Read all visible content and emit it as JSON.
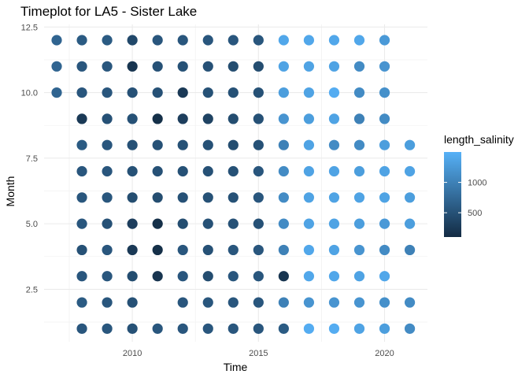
{
  "chart_data": {
    "type": "scatter",
    "title": "Timeplot for LA5 - Sister Lake",
    "xlabel": "Time",
    "ylabel": "Month",
    "x_ticks": [
      2010,
      2015,
      2020
    ],
    "y_ticks": [
      "2.5",
      "5.0",
      "7.5",
      "10.0",
      "12.5"
    ],
    "xlim": [
      2006.5,
      2021.7
    ],
    "ylim": [
      0.5,
      12.6
    ],
    "grid": true,
    "legend": {
      "title": "length_salinity",
      "ticks": [
        {
          "label": "1000",
          "value": 1000
        },
        {
          "label": "500",
          "value": 500
        }
      ],
      "range": [
        100,
        1500
      ],
      "low_color": "#132b43",
      "high_color": "#56b1f7",
      "placement": "right"
    },
    "points": [
      {
        "x": 2007,
        "y": 12,
        "v": 700
      },
      {
        "x": 2007,
        "y": 11,
        "v": 700
      },
      {
        "x": 2007,
        "y": 10,
        "v": 700
      },
      {
        "x": 2008,
        "y": 12,
        "v": 600
      },
      {
        "x": 2008,
        "y": 11,
        "v": 550
      },
      {
        "x": 2008,
        "y": 10,
        "v": 550
      },
      {
        "x": 2008,
        "y": 9,
        "v": 250
      },
      {
        "x": 2008,
        "y": 8,
        "v": 600
      },
      {
        "x": 2008,
        "y": 7,
        "v": 550
      },
      {
        "x": 2008,
        "y": 6,
        "v": 550
      },
      {
        "x": 2008,
        "y": 5,
        "v": 550
      },
      {
        "x": 2008,
        "y": 4,
        "v": 500
      },
      {
        "x": 2008,
        "y": 3,
        "v": 550
      },
      {
        "x": 2008,
        "y": 2,
        "v": 600
      },
      {
        "x": 2008,
        "y": 1,
        "v": 550
      },
      {
        "x": 2009,
        "y": 12,
        "v": 600
      },
      {
        "x": 2009,
        "y": 11,
        "v": 550
      },
      {
        "x": 2009,
        "y": 10,
        "v": 550
      },
      {
        "x": 2009,
        "y": 9,
        "v": 500
      },
      {
        "x": 2009,
        "y": 8,
        "v": 550
      },
      {
        "x": 2009,
        "y": 7,
        "v": 550
      },
      {
        "x": 2009,
        "y": 6,
        "v": 550
      },
      {
        "x": 2009,
        "y": 5,
        "v": 500
      },
      {
        "x": 2009,
        "y": 4,
        "v": 550
      },
      {
        "x": 2009,
        "y": 3,
        "v": 550
      },
      {
        "x": 2009,
        "y": 2,
        "v": 550
      },
      {
        "x": 2009,
        "y": 1,
        "v": 550
      },
      {
        "x": 2010,
        "y": 12,
        "v": 400
      },
      {
        "x": 2010,
        "y": 11,
        "v": 200
      },
      {
        "x": 2010,
        "y": 10,
        "v": 500
      },
      {
        "x": 2010,
        "y": 9,
        "v": 500
      },
      {
        "x": 2010,
        "y": 8,
        "v": 500
      },
      {
        "x": 2010,
        "y": 7,
        "v": 500
      },
      {
        "x": 2010,
        "y": 6,
        "v": 450
      },
      {
        "x": 2010,
        "y": 5,
        "v": 300
      },
      {
        "x": 2010,
        "y": 4,
        "v": 250
      },
      {
        "x": 2010,
        "y": 3,
        "v": 450
      },
      {
        "x": 2010,
        "y": 2,
        "v": 500
      },
      {
        "x": 2010,
        "y": 1,
        "v": 500
      },
      {
        "x": 2011,
        "y": 12,
        "v": 550
      },
      {
        "x": 2011,
        "y": 11,
        "v": 500
      },
      {
        "x": 2011,
        "y": 10,
        "v": 500
      },
      {
        "x": 2011,
        "y": 9,
        "v": 150
      },
      {
        "x": 2011,
        "y": 8,
        "v": 500
      },
      {
        "x": 2011,
        "y": 7,
        "v": 500
      },
      {
        "x": 2011,
        "y": 6,
        "v": 450
      },
      {
        "x": 2011,
        "y": 5,
        "v": 150
      },
      {
        "x": 2011,
        "y": 4,
        "v": 150
      },
      {
        "x": 2011,
        "y": 3,
        "v": 200
      },
      {
        "x": 2011,
        "y": 1,
        "v": 550
      },
      {
        "x": 2012,
        "y": 12,
        "v": 550
      },
      {
        "x": 2012,
        "y": 11,
        "v": 500
      },
      {
        "x": 2012,
        "y": 10,
        "v": 250
      },
      {
        "x": 2012,
        "y": 9,
        "v": 300
      },
      {
        "x": 2012,
        "y": 8,
        "v": 500
      },
      {
        "x": 2012,
        "y": 7,
        "v": 500
      },
      {
        "x": 2012,
        "y": 6,
        "v": 500
      },
      {
        "x": 2012,
        "y": 5,
        "v": 450
      },
      {
        "x": 2012,
        "y": 4,
        "v": 550
      },
      {
        "x": 2012,
        "y": 3,
        "v": 550
      },
      {
        "x": 2012,
        "y": 2,
        "v": 550
      },
      {
        "x": 2012,
        "y": 1,
        "v": 550
      },
      {
        "x": 2013,
        "y": 12,
        "v": 550
      },
      {
        "x": 2013,
        "y": 11,
        "v": 500
      },
      {
        "x": 2013,
        "y": 10,
        "v": 500
      },
      {
        "x": 2013,
        "y": 9,
        "v": 350
      },
      {
        "x": 2013,
        "y": 8,
        "v": 500
      },
      {
        "x": 2013,
        "y": 7,
        "v": 500
      },
      {
        "x": 2013,
        "y": 6,
        "v": 500
      },
      {
        "x": 2013,
        "y": 5,
        "v": 500
      },
      {
        "x": 2013,
        "y": 4,
        "v": 500
      },
      {
        "x": 2013,
        "y": 3,
        "v": 450
      },
      {
        "x": 2013,
        "y": 2,
        "v": 550
      },
      {
        "x": 2013,
        "y": 1,
        "v": 550
      },
      {
        "x": 2014,
        "y": 12,
        "v": 550
      },
      {
        "x": 2014,
        "y": 11,
        "v": 450
      },
      {
        "x": 2014,
        "y": 10,
        "v": 500
      },
      {
        "x": 2014,
        "y": 9,
        "v": 450
      },
      {
        "x": 2014,
        "y": 8,
        "v": 450
      },
      {
        "x": 2014,
        "y": 7,
        "v": 500
      },
      {
        "x": 2014,
        "y": 6,
        "v": 500
      },
      {
        "x": 2014,
        "y": 5,
        "v": 500
      },
      {
        "x": 2014,
        "y": 4,
        "v": 550
      },
      {
        "x": 2014,
        "y": 3,
        "v": 550
      },
      {
        "x": 2014,
        "y": 2,
        "v": 550
      },
      {
        "x": 2014,
        "y": 1,
        "v": 550
      },
      {
        "x": 2015,
        "y": 12,
        "v": 550
      },
      {
        "x": 2015,
        "y": 11,
        "v": 450
      },
      {
        "x": 2015,
        "y": 10,
        "v": 500
      },
      {
        "x": 2015,
        "y": 9,
        "v": 500
      },
      {
        "x": 2015,
        "y": 8,
        "v": 500
      },
      {
        "x": 2015,
        "y": 7,
        "v": 550
      },
      {
        "x": 2015,
        "y": 6,
        "v": 550
      },
      {
        "x": 2015,
        "y": 5,
        "v": 500
      },
      {
        "x": 2015,
        "y": 4,
        "v": 550
      },
      {
        "x": 2015,
        "y": 3,
        "v": 550
      },
      {
        "x": 2015,
        "y": 2,
        "v": 550
      },
      {
        "x": 2015,
        "y": 1,
        "v": 550
      },
      {
        "x": 2016,
        "y": 12,
        "v": 1400
      },
      {
        "x": 2016,
        "y": 11,
        "v": 1350
      },
      {
        "x": 2016,
        "y": 10,
        "v": 1300
      },
      {
        "x": 2016,
        "y": 9,
        "v": 1200
      },
      {
        "x": 2016,
        "y": 8,
        "v": 1000
      },
      {
        "x": 2016,
        "y": 7,
        "v": 1100
      },
      {
        "x": 2016,
        "y": 6,
        "v": 1100
      },
      {
        "x": 2016,
        "y": 5,
        "v": 1100
      },
      {
        "x": 2016,
        "y": 4,
        "v": 1000
      },
      {
        "x": 2016,
        "y": 3,
        "v": 200
      },
      {
        "x": 2016,
        "y": 2,
        "v": 1000
      },
      {
        "x": 2016,
        "y": 1,
        "v": 600
      },
      {
        "x": 2017,
        "y": 12,
        "v": 1400
      },
      {
        "x": 2017,
        "y": 11,
        "v": 1350
      },
      {
        "x": 2017,
        "y": 10,
        "v": 1350
      },
      {
        "x": 2017,
        "y": 9,
        "v": 1300
      },
      {
        "x": 2017,
        "y": 8,
        "v": 1350
      },
      {
        "x": 2017,
        "y": 7,
        "v": 1350
      },
      {
        "x": 2017,
        "y": 6,
        "v": 1350
      },
      {
        "x": 2017,
        "y": 5,
        "v": 1350
      },
      {
        "x": 2017,
        "y": 4,
        "v": 1400
      },
      {
        "x": 2017,
        "y": 3,
        "v": 1400
      },
      {
        "x": 2017,
        "y": 2,
        "v": 1200
      },
      {
        "x": 2017,
        "y": 1,
        "v": 1450
      },
      {
        "x": 2018,
        "y": 12,
        "v": 1400
      },
      {
        "x": 2018,
        "y": 11,
        "v": 1350
      },
      {
        "x": 2018,
        "y": 10,
        "v": 1450
      },
      {
        "x": 2018,
        "y": 9,
        "v": 1350
      },
      {
        "x": 2018,
        "y": 8,
        "v": 1100
      },
      {
        "x": 2018,
        "y": 7,
        "v": 1350
      },
      {
        "x": 2018,
        "y": 6,
        "v": 1350
      },
      {
        "x": 2018,
        "y": 5,
        "v": 1350
      },
      {
        "x": 2018,
        "y": 4,
        "v": 1350
      },
      {
        "x": 2018,
        "y": 3,
        "v": 1400
      },
      {
        "x": 2018,
        "y": 2,
        "v": 1200
      },
      {
        "x": 2018,
        "y": 1,
        "v": 1450
      },
      {
        "x": 2019,
        "y": 12,
        "v": 1400
      },
      {
        "x": 2019,
        "y": 11,
        "v": 1100
      },
      {
        "x": 2019,
        "y": 10,
        "v": 1100
      },
      {
        "x": 2019,
        "y": 9,
        "v": 1000
      },
      {
        "x": 2019,
        "y": 8,
        "v": 1100
      },
      {
        "x": 2019,
        "y": 7,
        "v": 1300
      },
      {
        "x": 2019,
        "y": 6,
        "v": 1350
      },
      {
        "x": 2019,
        "y": 5,
        "v": 1300
      },
      {
        "x": 2019,
        "y": 4,
        "v": 1200
      },
      {
        "x": 2019,
        "y": 3,
        "v": 1350
      },
      {
        "x": 2019,
        "y": 2,
        "v": 1200
      },
      {
        "x": 2019,
        "y": 1,
        "v": 1350
      },
      {
        "x": 2020,
        "y": 12,
        "v": 1250
      },
      {
        "x": 2020,
        "y": 11,
        "v": 1200
      },
      {
        "x": 2020,
        "y": 10,
        "v": 1150
      },
      {
        "x": 2020,
        "y": 9,
        "v": 1100
      },
      {
        "x": 2020,
        "y": 8,
        "v": 1300
      },
      {
        "x": 2020,
        "y": 7,
        "v": 1350
      },
      {
        "x": 2020,
        "y": 6,
        "v": 1350
      },
      {
        "x": 2020,
        "y": 5,
        "v": 1250
      },
      {
        "x": 2020,
        "y": 4,
        "v": 1100
      },
      {
        "x": 2020,
        "y": 3,
        "v": 1400
      },
      {
        "x": 2020,
        "y": 2,
        "v": 1150
      },
      {
        "x": 2020,
        "y": 1,
        "v": 1300
      },
      {
        "x": 2021,
        "y": 8,
        "v": 1300
      },
      {
        "x": 2021,
        "y": 7,
        "v": 1350
      },
      {
        "x": 2021,
        "y": 6,
        "v": 1300
      },
      {
        "x": 2021,
        "y": 5,
        "v": 1300
      },
      {
        "x": 2021,
        "y": 4,
        "v": 1000
      },
      {
        "x": 2021,
        "y": 2,
        "v": 1100
      },
      {
        "x": 2021,
        "y": 1,
        "v": 1100
      }
    ]
  }
}
